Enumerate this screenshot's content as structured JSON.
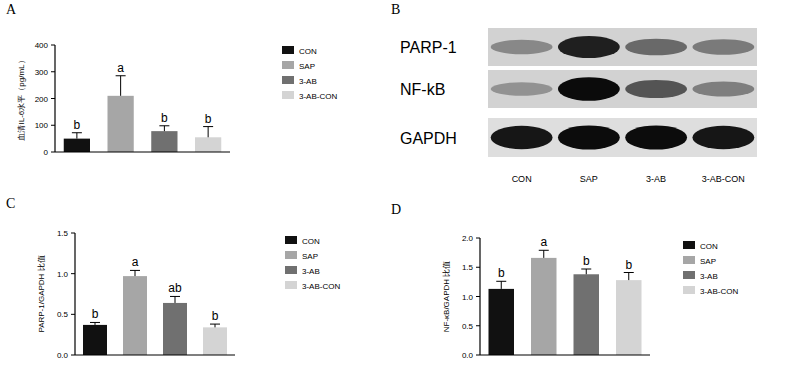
{
  "chart_data": [
    {
      "panel": "A",
      "type": "bar",
      "y_label": "血清IL-6水平（pg/mL）",
      "categories": [
        "CON",
        "SAP",
        "3-AB",
        "3-AB-CON"
      ],
      "values": [
        50,
        210,
        78,
        55
      ],
      "errors": [
        22,
        75,
        20,
        40
      ],
      "annotations": [
        "b",
        "a",
        "b",
        "b"
      ],
      "colors": [
        "#111111",
        "#a6a6a6",
        "#707070",
        "#d4d4d4"
      ],
      "ylim": [
        0,
        400
      ],
      "yticks": [
        0,
        100,
        200,
        300,
        400
      ],
      "grid": false,
      "legend": "right",
      "tick_labels": "y"
    },
    {
      "panel": "B",
      "type": "blot",
      "categories": [
        "CON",
        "SAP",
        "3-AB",
        "3-AB-CON"
      ],
      "rows": [
        {
          "name": "PARP-1",
          "values": [
            0.35,
            0.85,
            0.5,
            0.42
          ]
        },
        {
          "name": "NF-kB",
          "values": [
            0.3,
            0.95,
            0.6,
            0.4
          ]
        },
        {
          "name": "GAPDH",
          "values": [
            0.9,
            0.95,
            0.95,
            0.9
          ]
        }
      ]
    },
    {
      "panel": "C",
      "type": "bar",
      "y_label": "PARP-1/GAPDH 比值",
      "categories": [
        "CON",
        "SAP",
        "3-AB",
        "3-AB-CON"
      ],
      "values": [
        0.37,
        0.97,
        0.64,
        0.34
      ],
      "errors": [
        0.03,
        0.07,
        0.08,
        0.04
      ],
      "annotations": [
        "b",
        "a",
        "ab",
        "b"
      ],
      "colors": [
        "#111111",
        "#a6a6a6",
        "#707070",
        "#d4d4d4"
      ],
      "ylim": [
        0,
        1.5
      ],
      "yticks": [
        {
          "value": 0,
          "label": "0.0"
        },
        {
          "value": 0.5,
          "label": "0.5"
        },
        {
          "value": 1,
          "label": "1.0"
        },
        {
          "value": 1.5,
          "label": "1.5"
        }
      ],
      "grid": false,
      "legend": "right",
      "tick_labels": "y"
    },
    {
      "panel": "D",
      "type": "bar",
      "y_label": "NF-κB/GAPDH 比值",
      "categories": [
        "CON",
        "SAP",
        "3-AB",
        "3-AB-CON"
      ],
      "values": [
        1.13,
        1.66,
        1.38,
        1.28
      ],
      "errors": [
        0.13,
        0.13,
        0.09,
        0.13
      ],
      "annotations": [
        "b",
        "a",
        "b",
        "b"
      ],
      "colors": [
        "#111111",
        "#a6a6a6",
        "#707070",
        "#d4d4d4"
      ],
      "ylim": [
        0,
        2
      ],
      "yticks": [
        {
          "value": 0,
          "label": "0.0"
        },
        {
          "value": 0.5,
          "label": "0.5"
        },
        {
          "value": 1,
          "label": "1.0"
        },
        {
          "value": 1.5,
          "label": "1.5"
        },
        {
          "value": 2,
          "label": "2.0"
        }
      ],
      "grid": false,
      "legend": "right",
      "tick_labels": "y"
    }
  ]
}
